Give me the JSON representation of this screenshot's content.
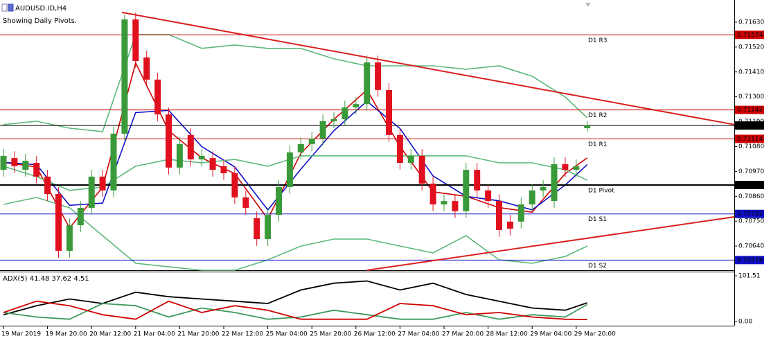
{
  "chart_data": {
    "type": "candlestick",
    "title": "AUDUSD.ID,H4",
    "annotation": "Showing Daily Pivots.",
    "categories": [
      "19 Mar 2019",
      null,
      null,
      null,
      "19 Mar 20:00",
      null,
      null,
      null,
      "20 Mar 12:00",
      null,
      null,
      null,
      "21 Mar 04:00",
      null,
      null,
      null,
      "21 Mar 20:00",
      null,
      null,
      null,
      "22 Mar 12:00",
      null,
      null,
      null,
      "25 Mar 04:00",
      null,
      null,
      null,
      "25 Mar 20:00",
      null,
      null,
      null,
      "26 Mar 12:00",
      null,
      null,
      null,
      "27 Mar 04:00",
      null,
      null,
      null,
      "27 Mar 20:00",
      null,
      null,
      null,
      "28 Mar 12:00",
      null,
      null,
      null,
      "29 Mar 04:00",
      null,
      null,
      null,
      "29 Mar 20:00",
      null
    ],
    "open": [
      0.70977,
      0.71029,
      0.70977,
      0.71008,
      0.70947,
      0.7087,
      0.70619,
      0.70732,
      0.70809,
      0.70947,
      0.70886,
      0.71137,
      0.71642,
      0.71474,
      0.71376,
      0.71222,
      0.70987,
      0.71131,
      0.71023,
      0.71029,
      0.70993,
      0.70962,
      0.70855,
      0.70763,
      0.70671,
      0.70778,
      0.70901,
      0.71054,
      0.71091,
      0.71115,
      0.71192,
      0.71201,
      0.71253,
      0.71268,
      0.71452,
      0.7133,
      0.71131,
      0.71008,
      0.71039,
      0.70916,
      0.70824,
      0.70839,
      0.70794,
      0.70977,
      0.70886,
      0.70839,
      0.70748,
      0.70748,
      0.70824,
      0.70886,
      0.70839,
      0.71002,
      0.70977,
      0.71161
    ],
    "high": [
      0.71069,
      0.71059,
      0.71047,
      0.71038,
      0.70977,
      0.709,
      0.70762,
      0.70839,
      0.70977,
      0.70977,
      0.71167,
      0.71662,
      0.71672,
      0.71504,
      0.71406,
      0.71252,
      0.71121,
      0.71161,
      0.71069,
      0.71059,
      0.71023,
      0.70992,
      0.70885,
      0.70793,
      0.70808,
      0.70931,
      0.71084,
      0.71121,
      0.71145,
      0.71222,
      0.71231,
      0.71283,
      0.71298,
      0.71482,
      0.71482,
      0.7136,
      0.71161,
      0.71069,
      0.71069,
      0.70946,
      0.70869,
      0.70869,
      0.71007,
      0.71007,
      0.70916,
      0.70869,
      0.70778,
      0.70854,
      0.70916,
      0.70931,
      0.71032,
      0.71032,
      0.71023,
      0.71192
    ],
    "low": [
      0.70947,
      0.70963,
      0.70947,
      0.70917,
      0.7084,
      0.70589,
      0.70589,
      0.70702,
      0.70779,
      0.70856,
      0.70856,
      0.71107,
      0.71428,
      0.71346,
      0.71192,
      0.70957,
      0.70957,
      0.70993,
      0.70993,
      0.70947,
      0.70932,
      0.70825,
      0.70779,
      0.70641,
      0.70641,
      0.70748,
      0.70871,
      0.71024,
      0.71061,
      0.71085,
      0.71162,
      0.71171,
      0.71223,
      0.71238,
      0.713,
      0.71101,
      0.70978,
      0.70978,
      0.70886,
      0.70794,
      0.70794,
      0.70764,
      0.70764,
      0.70856,
      0.70809,
      0.70681,
      0.70687,
      0.70718,
      0.70794,
      0.70856,
      0.70809,
      0.70947,
      0.70947,
      0.71146
    ],
    "close": [
      0.71039,
      0.70993,
      0.71017,
      0.70947,
      0.7087,
      0.70619,
      0.70732,
      0.70809,
      0.70947,
      0.70886,
      0.71137,
      0.71642,
      0.71458,
      0.71376,
      0.71222,
      0.70987,
      0.71091,
      0.71023,
      0.71039,
      0.70977,
      0.70962,
      0.70855,
      0.70809,
      0.70671,
      0.70778,
      0.70901,
      0.71054,
      0.71091,
      0.71115,
      0.71192,
      0.71201,
      0.71253,
      0.71268,
      0.71452,
      0.7133,
      0.71131,
      0.71008,
      0.71039,
      0.70916,
      0.70824,
      0.70839,
      0.70794,
      0.70977,
      0.70886,
      0.70839,
      0.70711,
      0.70717,
      0.70824,
      0.70886,
      0.70901,
      0.71002,
      0.70977,
      0.70993,
      0.71173
    ],
    "up_color": "#3a9a3a",
    "down_color": "#e0101e",
    "ylim": [
      0.70533,
      0.71728
    ],
    "yticks": [
      {
        "value": 0.7163,
        "label": "0.71630"
      },
      {
        "value": 0.7152,
        "label": "0.71520"
      },
      {
        "value": 0.7141,
        "label": "0.71410"
      },
      {
        "value": 0.713,
        "label": "0.71300"
      },
      {
        "value": 0.7119,
        "label": "0.71190"
      },
      {
        "value": 0.7108,
        "label": "0.71080"
      },
      {
        "value": 0.7097,
        "label": "0.70970"
      },
      {
        "value": 0.7086,
        "label": "0.70860"
      },
      {
        "value": 0.7075,
        "label": "0.70750"
      },
      {
        "value": 0.7064,
        "label": "0.70640"
      }
    ],
    "indicators": [
      {
        "color": "#d00000",
        "x": [
          0,
          3,
          6,
          9,
          12,
          15,
          18,
          21,
          24,
          27,
          30,
          33,
          36,
          39,
          42,
          45,
          48,
          51,
          53
        ],
        "values": [
          0.7101,
          0.7099,
          0.7072,
          0.709,
          0.7145,
          0.7115,
          0.7103,
          0.7096,
          0.7076,
          0.7105,
          0.712,
          0.7133,
          0.7108,
          0.7088,
          0.7086,
          0.7081,
          0.7079,
          0.7096,
          0.7103
        ]
      },
      {
        "color": "#1010c8",
        "x": [
          0,
          3,
          6,
          9,
          12,
          15,
          18,
          21,
          24,
          27,
          30,
          33,
          36,
          39,
          42,
          45,
          48,
          51,
          53
        ],
        "values": [
          0.7101,
          0.71,
          0.7082,
          0.7083,
          0.7123,
          0.7124,
          0.7108,
          0.7099,
          0.708,
          0.7098,
          0.7115,
          0.7128,
          0.7116,
          0.7095,
          0.7086,
          0.7084,
          0.708,
          0.7091,
          0.71
        ]
      },
      {
        "color": "#5cb87a",
        "x": [
          0,
          3,
          6,
          9,
          12,
          15,
          18,
          21,
          24,
          27,
          30,
          33,
          36,
          39,
          42,
          45,
          48,
          51,
          53
        ],
        "values": [
          0.71177,
          0.71192,
          0.71161,
          0.71146,
          0.71575,
          0.71575,
          0.71514,
          0.71529,
          0.71514,
          0.71514,
          0.71468,
          0.71437,
          0.71437,
          0.71437,
          0.71422,
          0.71437,
          0.71391,
          0.71299,
          0.71207
        ]
      },
      {
        "color": "#5cb87a",
        "x": [
          0,
          3,
          6,
          9,
          12,
          15,
          18,
          21,
          24,
          27,
          30,
          33,
          36,
          39,
          42,
          45,
          48,
          51,
          53
        ],
        "values": [
          0.70993,
          0.70947,
          0.70886,
          0.70901,
          0.70993,
          0.71023,
          0.71008,
          0.71023,
          0.70993,
          0.71039,
          0.71039,
          0.71039,
          0.71039,
          0.71039,
          0.71039,
          0.71008,
          0.71008,
          0.70977,
          0.70931
        ]
      },
      {
        "color": "#5cb87a",
        "x": [
          0,
          3,
          6,
          9,
          12,
          15,
          18,
          21,
          24,
          27,
          30,
          33,
          36,
          39,
          42,
          45,
          48,
          51,
          53
        ],
        "values": [
          0.70824,
          0.70855,
          0.70809,
          0.70686,
          0.70564,
          0.70548,
          0.70533,
          0.70533,
          0.70579,
          0.7064,
          0.70671,
          0.70671,
          0.7064,
          0.7061,
          0.70686,
          0.70579,
          0.70564,
          0.70594,
          0.7064
        ]
      }
    ],
    "trendlines": [
      {
        "color": "#d82020",
        "x": [
          10.75,
          66.35
        ],
        "values": [
          0.71673,
          0.71177
        ]
      },
      {
        "color": "#d82020",
        "x": [
          33,
          66.35
        ],
        "values": [
          0.70533,
          0.70769
        ]
      }
    ],
    "levels": [
      {
        "name": "D1 R3",
        "value": 0.71574,
        "label": "0.71574",
        "color": "#d00000"
      },
      {
        "name": "D1 R2",
        "value": 0.71242,
        "label": "0.71242",
        "color": "#d00000"
      },
      {
        "value": 0.71173,
        "label": "0.71173",
        "color": "#000000"
      },
      {
        "name": "D1 R1",
        "value": 0.71114,
        "label": "0.71114",
        "color": "#d00000"
      },
      {
        "name": "D1 Pivot",
        "value": 0.7091,
        "label": "0.70910",
        "color": "#000000"
      },
      {
        "name": "D1 S1",
        "value": 0.70782,
        "label": "0.70782",
        "color": "#1010c8"
      },
      {
        "name": "D1 S2",
        "value": 0.70578,
        "label": "0.70578",
        "color": "#1010c8"
      }
    ],
    "adx": {
      "type": "line",
      "title": "ADX(5) 41.48 37.62 4.51",
      "ylim": [
        0,
        101.51
      ],
      "yticks": [
        101.51,
        {
          "value": 0,
          "label": "0.00"
        }
      ],
      "x": [
        0,
        3,
        6,
        9,
        12,
        15,
        18,
        21,
        24,
        27,
        30,
        33,
        36,
        39,
        42,
        45,
        48,
        51,
        53
      ],
      "series": [
        {
          "color": "#000000",
          "values": [
            15,
            35,
            50,
            40,
            65,
            55,
            50,
            45,
            40,
            70,
            85,
            90,
            70,
            85,
            60,
            45,
            30,
            25,
            41.48
          ]
        },
        {
          "color": "#3a9a5a",
          "values": [
            20,
            10,
            5,
            40,
            35,
            10,
            30,
            20,
            5,
            10,
            25,
            15,
            5,
            5,
            20,
            5,
            15,
            10,
            37.62
          ]
        },
        {
          "color": "#d00000",
          "values": [
            20,
            45,
            35,
            15,
            5,
            45,
            20,
            35,
            25,
            5,
            5,
            5,
            40,
            35,
            15,
            20,
            10,
            5,
            4.51
          ]
        }
      ]
    }
  }
}
